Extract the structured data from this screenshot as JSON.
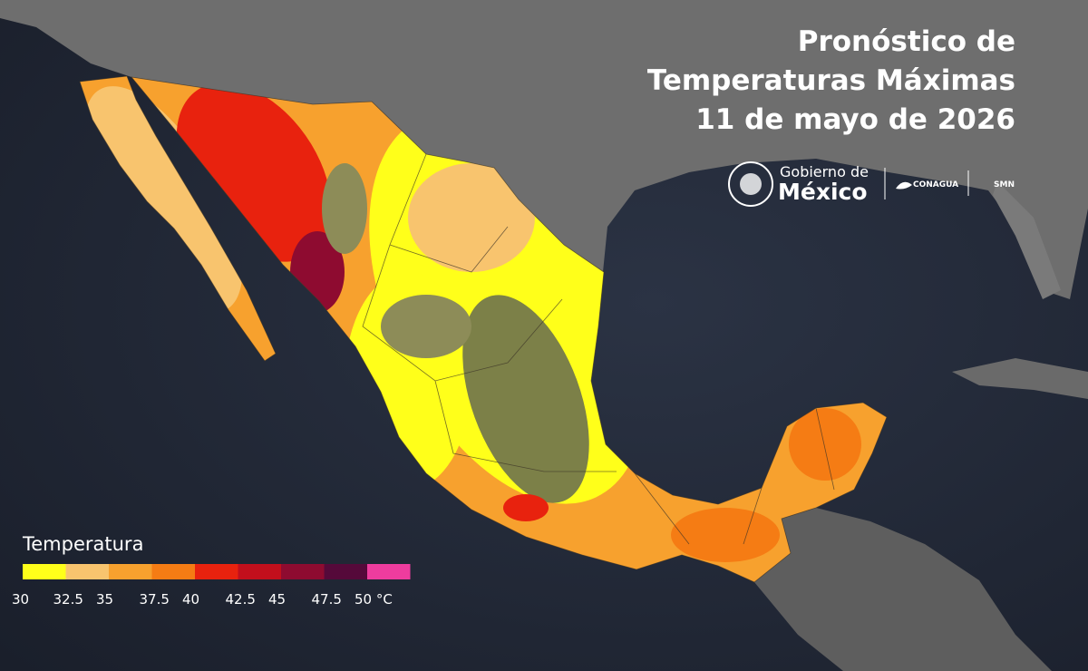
{
  "header": {
    "title": [
      "Pronóstico de",
      "Temperaturas Máximas",
      "11 de mayo de 2026"
    ]
  },
  "logos": {
    "gobierno_line1": "Gobierno de",
    "gobierno_line2": "México",
    "conagua": "CONAGUA",
    "smn": "SMN"
  },
  "legend": {
    "title": "Temperatura",
    "colors": [
      "#ffff1a",
      "#f8c46e",
      "#f7a12e",
      "#f57c14",
      "#e8220e",
      "#c20f1c",
      "#8e0b30",
      "#55093a",
      "#ee3c9e"
    ],
    "labels": [
      "30",
      "32.5",
      "35",
      "37.5",
      "40",
      "42.5",
      "45",
      "47.5",
      "50 °C"
    ]
  }
}
